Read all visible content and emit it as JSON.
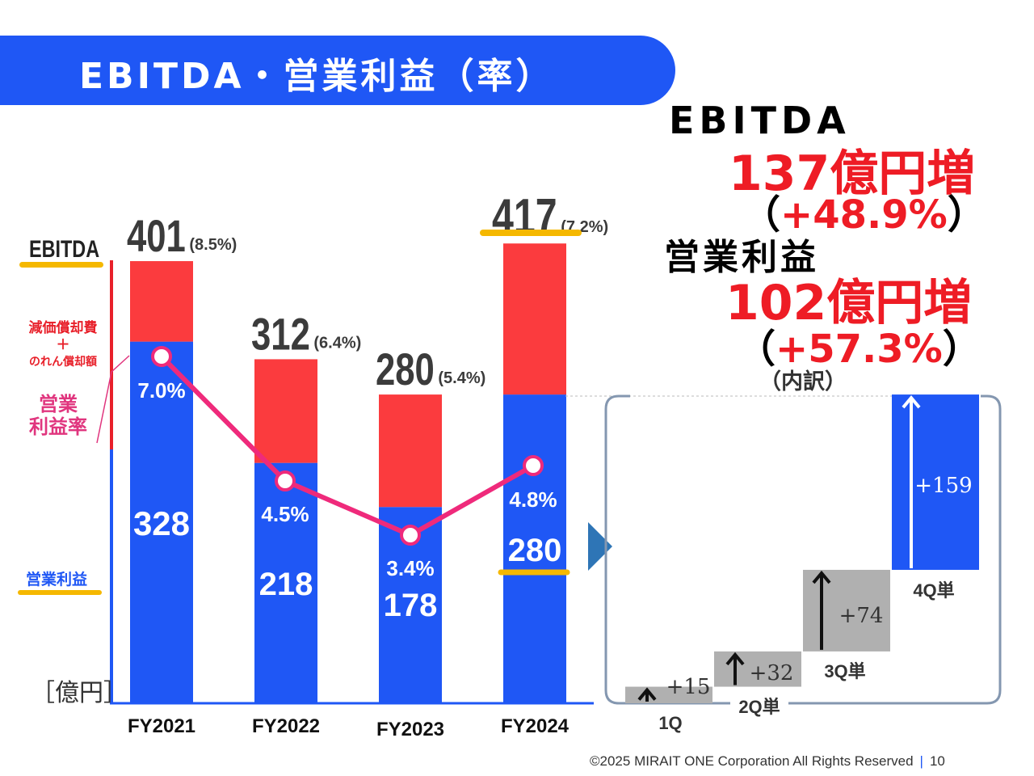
{
  "header": {
    "title": "EBITDA・営業利益（率）"
  },
  "left_labels": {
    "ebitda": "EBITDA",
    "depreciation_line1": "減価償却費",
    "depreciation_plus": "＋",
    "depreciation_line2": "のれん償却額",
    "op_margin": "営業\n利益率",
    "op_margin_line1": "営業",
    "op_margin_line2": "利益率",
    "operating_profit": "営業利益",
    "unit": "［億円］"
  },
  "highlights": {
    "ebitda_label": "EBITDA",
    "ebitda_increase": "137億円増",
    "ebitda_pct_open": "（",
    "ebitda_pct": "+48.9%",
    "ebitda_pct_close": "）",
    "op_label": "営業利益",
    "op_increase": "102億円増",
    "op_pct_open": "（",
    "op_pct": "+57.3%",
    "op_pct_close": "）",
    "breakdown": "（内訳）"
  },
  "chart_data": [
    {
      "type": "bar",
      "categories": [
        "FY2021",
        "FY2022",
        "FY2023",
        "FY2024"
      ],
      "series": [
        {
          "name": "営業利益",
          "values": [
            328,
            218,
            178,
            280
          ],
          "color": "#1f57f5"
        },
        {
          "name": "減価償却費＋のれん償却額",
          "values": [
            73,
            94,
            102,
            137
          ],
          "color": "#fb3b3e"
        }
      ],
      "totals": [
        401,
        312,
        280,
        417
      ],
      "total_labels": [
        "401",
        "312",
        "280",
        "417"
      ],
      "total_pct_labels": [
        "(8.5%)",
        "(6.4%)",
        "(5.4%)",
        "(7.2%)"
      ],
      "operating_profit_labels": [
        "328",
        "218",
        "178",
        "280"
      ],
      "line": {
        "name": "営業利益率",
        "values": [
          7.0,
          4.5,
          3.4,
          4.8
        ],
        "labels": [
          "7.0%",
          "4.5%",
          "3.4%",
          "4.8%"
        ],
        "color": "#ef2a7b"
      },
      "ylim": [
        0,
        420
      ]
    },
    {
      "type": "bar",
      "subtype": "waterfall",
      "categories": [
        "1Q",
        "2Q単",
        "3Q単",
        "4Q単"
      ],
      "values": [
        15,
        32,
        74,
        159
      ],
      "labels": [
        "+15",
        "+32",
        "+74",
        "+159"
      ],
      "colors": [
        "#b0b0b0",
        "#b0b0b0",
        "#b0b0b0",
        "#1f57f5"
      ]
    }
  ],
  "footer": {
    "copyright": "©2025 MIRAIT ONE Corporation All Rights Reserved",
    "separator": "|",
    "page": "10"
  }
}
